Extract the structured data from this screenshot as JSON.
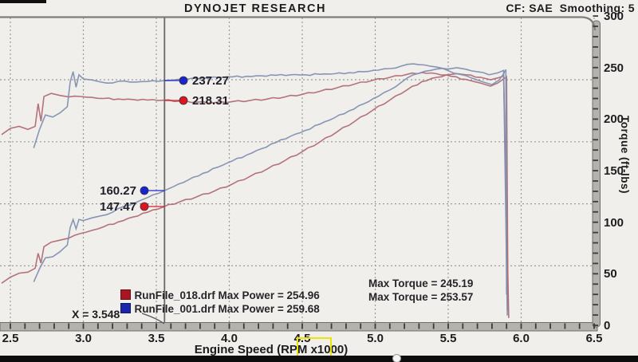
{
  "header": {
    "title": "DYNOJET RESEARCH",
    "correction": "CF: SAE  Smoothing: 5"
  },
  "chart_data": {
    "type": "line",
    "title": "DYNOJET RESEARCH",
    "x_axis": {
      "label": "Engine Speed (RPM x1000)",
      "min": 2.5,
      "max": 6.5,
      "minor_step": 0.1,
      "ticks": [
        2.5,
        3.0,
        3.5,
        4.0,
        4.5,
        5.0,
        5.5,
        6.0,
        6.5
      ]
    },
    "right_axis": {
      "label": "Torque (ft-lbs)",
      "min": 0,
      "max": 300,
      "minor_step": 10,
      "ticks": [
        300,
        250,
        200,
        150,
        100,
        50,
        0
      ]
    },
    "power_gridlines_hp": [
      250,
      200,
      150,
      100
    ],
    "grid": "dashed",
    "cursor": {
      "x": 3.548,
      "label": "X = 3.548",
      "readouts": [
        {
          "value": "237.27",
          "series": "RunFile_001.drf",
          "channel": "torque",
          "color": "#1724cf"
        },
        {
          "value": "218.31",
          "series": "RunFile_018.drf",
          "channel": "torque",
          "color": "#e01321"
        },
        {
          "value": "160.27",
          "series": "RunFile_001.drf",
          "channel": "power",
          "color": "#1724cf"
        },
        {
          "value": "147.47",
          "series": "RunFile_018.drf",
          "channel": "power",
          "color": "#e01321"
        }
      ]
    },
    "legend": [
      {
        "left": "RunFile_018.drf Max Power = 254.96",
        "right": "Max Torque = 245.19",
        "color": "#a81624"
      },
      {
        "left": "RunFile_001.drf Max Power = 259.68",
        "right": "Max Torque = 253.57",
        "color": "#1a24a8"
      }
    ],
    "series": [
      {
        "name": "RunFile_018.drf torque",
        "scale": "torque",
        "color": "#b06a74",
        "points": [
          [
            2.44,
            185
          ],
          [
            2.5,
            191
          ],
          [
            2.56,
            193
          ],
          [
            2.62,
            190
          ],
          [
            2.67,
            193
          ],
          [
            2.69,
            215
          ],
          [
            2.71,
            198
          ],
          [
            2.73,
            222
          ],
          [
            2.78,
            225
          ],
          [
            2.84,
            223
          ],
          [
            2.9,
            221.5
          ],
          [
            2.98,
            222
          ],
          [
            3.06,
            221
          ],
          [
            3.14,
            220
          ],
          [
            3.24,
            219.5
          ],
          [
            3.34,
            219
          ],
          [
            3.44,
            218.5
          ],
          [
            3.548,
            218.31
          ],
          [
            3.66,
            217.5
          ],
          [
            3.78,
            216.5
          ],
          [
            3.9,
            216
          ],
          [
            4.02,
            217
          ],
          [
            4.14,
            218
          ],
          [
            4.26,
            219.5
          ],
          [
            4.38,
            221.5
          ],
          [
            4.5,
            224
          ],
          [
            4.62,
            227
          ],
          [
            4.74,
            230.5
          ],
          [
            4.86,
            234
          ],
          [
            4.98,
            237.5
          ],
          [
            5.1,
            240.5
          ],
          [
            5.22,
            243.5
          ],
          [
            5.32,
            245.19
          ],
          [
            5.42,
            244
          ],
          [
            5.52,
            241.5
          ],
          [
            5.62,
            238.5
          ],
          [
            5.72,
            235
          ],
          [
            5.79,
            232
          ],
          [
            5.84,
            235
          ],
          [
            5.88,
            239
          ],
          [
            5.9,
            241
          ],
          [
            5.91,
            14
          ]
        ]
      },
      {
        "name": "RunFile_018.drf power",
        "scale": "power",
        "color": "#b06a74",
        "points": [
          [
            2.44,
            86
          ],
          [
            2.5,
            90.9
          ],
          [
            2.56,
            94.1
          ],
          [
            2.62,
            94.9
          ],
          [
            2.67,
            98.1
          ],
          [
            2.69,
            110.1
          ],
          [
            2.71,
            102.2
          ],
          [
            2.73,
            115.4
          ],
          [
            2.78,
            119.1
          ],
          [
            2.84,
            120.7
          ],
          [
            2.9,
            122.3
          ],
          [
            2.98,
            126
          ],
          [
            3.06,
            128.6
          ],
          [
            3.14,
            131.5
          ],
          [
            3.24,
            135.4
          ],
          [
            3.34,
            139.3
          ],
          [
            3.44,
            143.2
          ],
          [
            3.548,
            147.47
          ],
          [
            3.66,
            151.6
          ],
          [
            3.78,
            155.8
          ],
          [
            3.9,
            160.4
          ],
          [
            4.02,
            165.9
          ],
          [
            4.14,
            172
          ],
          [
            4.26,
            178.1
          ],
          [
            4.38,
            184.8
          ],
          [
            4.5,
            192
          ],
          [
            4.62,
            199.8
          ],
          [
            4.74,
            208.1
          ],
          [
            4.86,
            216.5
          ],
          [
            4.98,
            225.2
          ],
          [
            5.1,
            233.6
          ],
          [
            5.22,
            242
          ],
          [
            5.32,
            248.5
          ],
          [
            5.42,
            251.9
          ],
          [
            5.52,
            254.3
          ],
          [
            5.56,
            254.96
          ],
          [
            5.62,
            254
          ],
          [
            5.72,
            252
          ],
          [
            5.79,
            250
          ],
          [
            5.84,
            251.5
          ],
          [
            5.88,
            253
          ],
          [
            5.915,
            58
          ]
        ]
      },
      {
        "name": "RunFile_001.drf torque",
        "scale": "torque",
        "color": "#8190b2",
        "points": [
          [
            2.66,
            172
          ],
          [
            2.7,
            190
          ],
          [
            2.74,
            204
          ],
          [
            2.79,
            202
          ],
          [
            2.84,
            206
          ],
          [
            2.89,
            212
          ],
          [
            2.91,
            236
          ],
          [
            2.93,
            246
          ],
          [
            2.95,
            231
          ],
          [
            2.97,
            243
          ],
          [
            3.0,
            239
          ],
          [
            3.06,
            238
          ],
          [
            3.12,
            236
          ],
          [
            3.2,
            235
          ],
          [
            3.28,
            237
          ],
          [
            3.36,
            236
          ],
          [
            3.44,
            236.5
          ],
          [
            3.548,
            237.27
          ],
          [
            3.62,
            238
          ],
          [
            3.72,
            239
          ],
          [
            3.82,
            240
          ],
          [
            3.92,
            240.5
          ],
          [
            4.02,
            241
          ],
          [
            4.12,
            241.5
          ],
          [
            4.22,
            242
          ],
          [
            4.32,
            242.5
          ],
          [
            4.42,
            243
          ],
          [
            4.52,
            243
          ],
          [
            4.62,
            243.5
          ],
          [
            4.72,
            244
          ],
          [
            4.82,
            245
          ],
          [
            4.92,
            246
          ],
          [
            5.02,
            247.5
          ],
          [
            5.1,
            249
          ],
          [
            5.18,
            251.5
          ],
          [
            5.26,
            253.57
          ],
          [
            5.34,
            252.5
          ],
          [
            5.42,
            250.5
          ],
          [
            5.5,
            247
          ],
          [
            5.58,
            243.5
          ],
          [
            5.66,
            240
          ],
          [
            5.74,
            236
          ],
          [
            5.8,
            233.5
          ],
          [
            5.85,
            238
          ],
          [
            5.88,
            244
          ],
          [
            5.895,
            248
          ],
          [
            5.9,
            30
          ]
        ]
      },
      {
        "name": "RunFile_001.drf power",
        "scale": "power",
        "color": "#8190b2",
        "points": [
          [
            2.66,
            87
          ],
          [
            2.7,
            97.7
          ],
          [
            2.74,
            106.4
          ],
          [
            2.79,
            107.3
          ],
          [
            2.84,
            111.4
          ],
          [
            2.89,
            116.7
          ],
          [
            2.91,
            130.8
          ],
          [
            2.93,
            137.3
          ],
          [
            2.95,
            129.8
          ],
          [
            2.97,
            137.4
          ],
          [
            3.0,
            136.5
          ],
          [
            3.06,
            138.7
          ],
          [
            3.12,
            140.3
          ],
          [
            3.2,
            143.2
          ],
          [
            3.28,
            148
          ],
          [
            3.36,
            151
          ],
          [
            3.44,
            155
          ],
          [
            3.548,
            160.27
          ],
          [
            3.62,
            164
          ],
          [
            3.72,
            169.3
          ],
          [
            3.82,
            174.6
          ],
          [
            3.92,
            179.5
          ],
          [
            4.02,
            184.5
          ],
          [
            4.12,
            189.4
          ],
          [
            4.22,
            194.4
          ],
          [
            4.32,
            199.4
          ],
          [
            4.42,
            204.5
          ],
          [
            4.52,
            209.1
          ],
          [
            4.62,
            214.2
          ],
          [
            4.72,
            219.3
          ],
          [
            4.82,
            224.9
          ],
          [
            4.92,
            230.5
          ],
          [
            5.02,
            236.6
          ],
          [
            5.1,
            241.8
          ],
          [
            5.18,
            248
          ],
          [
            5.26,
            254
          ],
          [
            5.34,
            256.8
          ],
          [
            5.42,
            258.6
          ],
          [
            5.5,
            258.6
          ],
          [
            5.56,
            259.68
          ],
          [
            5.62,
            258.5
          ],
          [
            5.7,
            256.5
          ],
          [
            5.78,
            254
          ],
          [
            5.84,
            255.5
          ],
          [
            5.88,
            257.5
          ],
          [
            5.905,
            60
          ]
        ]
      }
    ]
  }
}
